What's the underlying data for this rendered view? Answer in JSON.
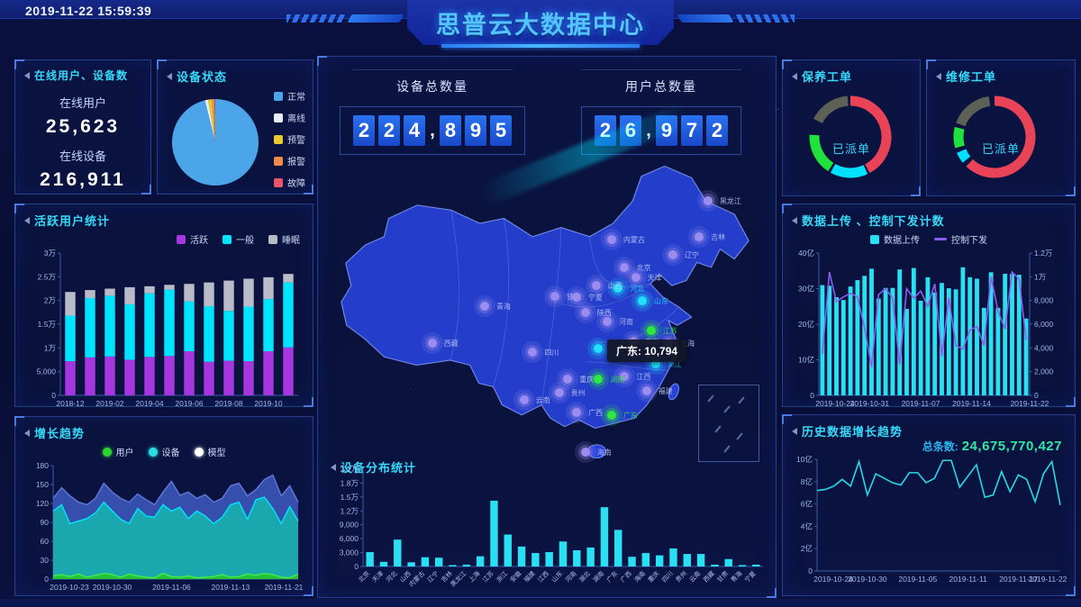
{
  "header": {
    "timestamp": "2019-11-22 15:59:39",
    "title": "思普云大数据中心"
  },
  "panels": {
    "online": {
      "title": "在线用户、设备数",
      "user_label": "在线用户",
      "user_value": "25,623",
      "device_label": "在线设备",
      "device_value": "216,911"
    },
    "device_status": {
      "title": "设备状态"
    },
    "active_users": {
      "title": "活跃用户统计"
    },
    "growth": {
      "title": "增长趋势"
    },
    "distribution": {
      "title": "设备分布统计"
    },
    "maintenance": {
      "title": "保养工单"
    },
    "repair": {
      "title": "维修工单"
    },
    "upload": {
      "title": "数据上传 、控制下发计数"
    },
    "history": {
      "title": "历史数据增长趋势",
      "total_label": "总条数:",
      "total_value": "24,675,770,427"
    }
  },
  "totals": {
    "device_label": "设备总数量",
    "device_value": "224,895",
    "user_label": "用户总数量",
    "user_value": "26,972"
  },
  "map": {
    "tooltip": "广东: 10,794",
    "bubbles": [
      {
        "name": "黑龙江",
        "x": 87,
        "y": 13,
        "c": "p"
      },
      {
        "name": "吉林",
        "x": 85,
        "y": 25,
        "c": "p"
      },
      {
        "name": "辽宁",
        "x": 79,
        "y": 31,
        "c": "p"
      },
      {
        "name": "内蒙古",
        "x": 65,
        "y": 26,
        "c": "p"
      },
      {
        "name": "北京",
        "x": 68,
        "y": 35,
        "c": "p"
      },
      {
        "name": "天津",
        "x": 70.5,
        "y": 38.5,
        "c": "p"
      },
      {
        "name": "河北",
        "x": 66.5,
        "y": 42,
        "c": "c"
      },
      {
        "name": "山西",
        "x": 61.5,
        "y": 41,
        "c": "p"
      },
      {
        "name": "山东",
        "x": 72,
        "y": 46,
        "c": "c"
      },
      {
        "name": "河南",
        "x": 64,
        "y": 53,
        "c": "p"
      },
      {
        "name": "江苏",
        "x": 74,
        "y": 56,
        "c": "g"
      },
      {
        "name": "安徽",
        "x": 70,
        "y": 59.5,
        "c": "p"
      },
      {
        "name": "上海",
        "x": 78,
        "y": 60,
        "c": "p"
      },
      {
        "name": "湖北",
        "x": 62,
        "y": 62,
        "c": "c"
      },
      {
        "name": "浙江",
        "x": 75,
        "y": 67,
        "c": "c"
      },
      {
        "name": "江西",
        "x": 68,
        "y": 71,
        "c": "p"
      },
      {
        "name": "湖南",
        "x": 62,
        "y": 72,
        "c": "g"
      },
      {
        "name": "重庆",
        "x": 55,
        "y": 72,
        "c": "p"
      },
      {
        "name": "四川",
        "x": 47,
        "y": 63,
        "c": "p"
      },
      {
        "name": "贵州",
        "x": 53,
        "y": 76.5,
        "c": "p"
      },
      {
        "name": "福建",
        "x": 73,
        "y": 76,
        "c": "p"
      },
      {
        "name": "广西",
        "x": 57,
        "y": 83,
        "c": "p"
      },
      {
        "name": "广东",
        "x": 65,
        "y": 84,
        "c": "g"
      },
      {
        "name": "云南",
        "x": 45,
        "y": 79,
        "c": "p"
      },
      {
        "name": "西藏",
        "x": 24,
        "y": 60,
        "c": "p"
      },
      {
        "name": "青海",
        "x": 36,
        "y": 48,
        "c": "p"
      },
      {
        "name": "甘肃",
        "x": 52,
        "y": 44.5,
        "c": "p"
      },
      {
        "name": "宁夏",
        "x": 57,
        "y": 45,
        "c": "p"
      },
      {
        "name": "陕西",
        "x": 59,
        "y": 50,
        "c": "p"
      },
      {
        "name": "海南",
        "x": 59,
        "y": 96,
        "c": "p"
      }
    ]
  },
  "colors": {
    "bubble_p": "#9c8cf0",
    "bubble_c": "#1fe0ff",
    "bubble_g": "#2ee83e",
    "axis": "#3c5ba8",
    "tick_text": "#9db6e8"
  },
  "chart_data": [
    {
      "id": "device_status",
      "type": "pie",
      "title": "设备状态",
      "legend_position": "right",
      "slices": [
        {
          "label": "正常",
          "value": 96.2,
          "color": "#4ba5e8"
        },
        {
          "label": "离线",
          "value": 1.2,
          "color": "#e8eefb"
        },
        {
          "label": "预警",
          "value": 1.4,
          "color": "#e8c92e"
        },
        {
          "label": "报警",
          "value": 1.0,
          "color": "#ef8a4a"
        },
        {
          "label": "故障",
          "value": 0.2,
          "color": "#e85568"
        }
      ]
    },
    {
      "id": "active_users",
      "type": "stacked_bar",
      "title": "活跃用户统计",
      "ylim": [
        0,
        30000
      ],
      "xtick_every": 2,
      "categories": [
        "2018-12",
        "2019-01",
        "2019-02",
        "2019-03",
        "2019-04",
        "2019-05",
        "2019-06",
        "2019-07",
        "2019-08",
        "2019-09",
        "2019-10",
        "2019-11"
      ],
      "series": [
        {
          "name": "活跃",
          "color": "#a636e0",
          "values": [
            7200,
            8000,
            8200,
            7500,
            8100,
            8300,
            9300,
            7100,
            7300,
            7200,
            9300,
            10100
          ]
        },
        {
          "name": "一般",
          "color": "#00e4ff",
          "values": [
            9600,
            12500,
            12800,
            11700,
            13400,
            14000,
            10500,
            11700,
            10500,
            11500,
            11000,
            13700
          ]
        },
        {
          "name": "睡眠",
          "color": "#b9bcc8",
          "values": [
            5000,
            1700,
            1500,
            3600,
            1500,
            1000,
            3700,
            5000,
            6400,
            5900,
            4600,
            1800
          ]
        }
      ],
      "yticks": [
        {
          "v": 0,
          "l": "0"
        },
        {
          "v": 5000,
          "l": "5,000"
        },
        {
          "v": 10000,
          "l": "1万"
        },
        {
          "v": 15000,
          "l": "1.5万"
        },
        {
          "v": 20000,
          "l": "2万"
        },
        {
          "v": 25000,
          "l": "2.5万"
        },
        {
          "v": 30000,
          "l": "3万"
        }
      ]
    },
    {
      "id": "growth_trend",
      "type": "layered_area",
      "title": "增长趋势",
      "ylim": [
        0,
        180
      ],
      "yticks": [
        {
          "v": 0,
          "l": "0"
        },
        {
          "v": 30,
          "l": "30"
        },
        {
          "v": 60,
          "l": "60"
        },
        {
          "v": 90,
          "l": "90"
        },
        {
          "v": 120,
          "l": "120"
        },
        {
          "v": 150,
          "l": "150"
        },
        {
          "v": 180,
          "l": "180"
        }
      ],
      "xticks": [
        {
          "pos": 0,
          "l": "2019-10-23"
        },
        {
          "pos": 0.241,
          "l": "2019-10-30"
        },
        {
          "pos": 0.483,
          "l": "2019-11-06"
        },
        {
          "pos": 0.724,
          "l": "2019-11-13"
        },
        {
          "pos": 1,
          "l": "2019-11-21"
        }
      ],
      "legend": [
        {
          "label": "用户",
          "color": "#2fd432",
          "type": "dot"
        },
        {
          "label": "设备",
          "color": "#29e0e0",
          "type": "dot"
        },
        {
          "label": "模型",
          "color": "#ffffff",
          "type": "dot"
        }
      ],
      "series": [
        {
          "name": "模型",
          "color": "#3b55b8",
          "line": "#5e79d8",
          "values": [
            128,
            145,
            132,
            122,
            118,
            128,
            152,
            138,
            128,
            122,
            135,
            126,
            118,
            138,
            155,
            133,
            138,
            128,
            134,
            122,
            128,
            148,
            152,
            132,
            142,
            158,
            165,
            132,
            148,
            122
          ]
        },
        {
          "name": "设备",
          "color": "#17b2ae",
          "line": "#00e5ff",
          "values": [
            108,
            118,
            88,
            92,
            96,
            105,
            122,
            108,
            95,
            88,
            112,
            100,
            98,
            118,
            108,
            114,
            96,
            108,
            100,
            88,
            98,
            118,
            122,
            95,
            126,
            130,
            112,
            88,
            115,
            92
          ]
        },
        {
          "name": "用户",
          "color": "#22c72a",
          "line": "#49e84f",
          "values": [
            5,
            7,
            4,
            8,
            3,
            6,
            9,
            7,
            3,
            8,
            5,
            3,
            2,
            9,
            4,
            3,
            5,
            2,
            3,
            4,
            7,
            3,
            4,
            8,
            6,
            9,
            7,
            3,
            2,
            8
          ]
        }
      ]
    },
    {
      "id": "device_distribution",
      "type": "bar",
      "title": "设备分布统计",
      "ylim": [
        0,
        21000
      ],
      "bar_color": "#29dff2",
      "categories": [
        "北京",
        "天津",
        "河北",
        "山西",
        "内蒙古",
        "辽宁",
        "吉林",
        "黑龙江",
        "上海",
        "江苏",
        "浙江",
        "安徽",
        "福建",
        "江西",
        "山东",
        "河南",
        "湖北",
        "湖南",
        "广东",
        "广西",
        "海南",
        "重庆",
        "四川",
        "贵州",
        "云南",
        "西藏",
        "甘肃",
        "青海",
        "宁夏"
      ],
      "values": [
        3100,
        1000,
        5800,
        900,
        2000,
        1900,
        300,
        400,
        2200,
        14200,
        6900,
        4300,
        2900,
        3100,
        5400,
        3500,
        4100,
        12800,
        7900,
        2100,
        2900,
        2400,
        3900,
        2700,
        2700,
        400,
        1600,
        300,
        400
      ],
      "yticks": [
        {
          "v": 0,
          "l": "0"
        },
        {
          "v": 3000,
          "l": "3,000"
        },
        {
          "v": 6000,
          "l": "6,000"
        },
        {
          "v": 9000,
          "l": "9,000"
        },
        {
          "v": 12000,
          "l": "1.2万"
        },
        {
          "v": 15000,
          "l": "1.5万"
        },
        {
          "v": 18000,
          "l": "1.8万"
        },
        {
          "v": 21000,
          "l": "2.1万"
        }
      ]
    },
    {
      "id": "maintenance_orders",
      "type": "donut",
      "title": "保养工单",
      "center_label": "已派单",
      "segments": [
        {
          "a0": 0,
          "a1": 152,
          "color": "#e84357"
        },
        {
          "a0": 155,
          "a1": 209,
          "color": "#00e0ff"
        },
        {
          "a0": 213,
          "a1": 273,
          "color": "#1fe23c"
        },
        {
          "a0": 296,
          "a1": 356,
          "color": "#5c6055"
        }
      ]
    },
    {
      "id": "repair_orders",
      "type": "donut",
      "title": "维修工单",
      "center_label": "已派单",
      "segments": [
        {
          "a0": 0,
          "a1": 224,
          "color": "#e84357"
        },
        {
          "a0": 231,
          "a1": 247,
          "color": "#00e0ff"
        },
        {
          "a0": 254,
          "a1": 284,
          "color": "#1fe23c"
        },
        {
          "a0": 290,
          "a1": 352,
          "color": "#5c6055"
        }
      ]
    },
    {
      "id": "upload_control",
      "type": "bar_line",
      "title": "数据上传 、控制下发计数",
      "legend": [
        {
          "label": "数据上传",
          "color": "#29dff2",
          "type": "bar"
        },
        {
          "label": "控制下发",
          "color": "#8a5cf0",
          "type": "line"
        }
      ],
      "ylim_left": [
        0,
        40
      ],
      "ylim_right": [
        0,
        12000
      ],
      "bars": {
        "name": "数据上传",
        "color": "#29dff2",
        "values": [
          31,
          30.8,
          27.6,
          26.8,
          30.6,
          32.4,
          33.6,
          35.6,
          27.2,
          30.2,
          30.2,
          35.4,
          24.3,
          35.8,
          26.6,
          33.2,
          28.9,
          31.6,
          30.1,
          29.8,
          36,
          33.2,
          32.8,
          24.6,
          34.6,
          24.6,
          34.2,
          34.1,
          33.9,
          21.6
        ]
      },
      "line": {
        "name": "控制下发",
        "color": "#8a5cf0",
        "values": [
          3500,
          10400,
          7900,
          8300,
          8600,
          8300,
          5700,
          2400,
          8500,
          9000,
          8200,
          2600,
          9000,
          8200,
          8800,
          7500,
          9400,
          3300,
          8200,
          4200,
          3900,
          5500,
          5800,
          4200,
          10000,
          7100,
          5600,
          10400,
          9800,
          4700
        ]
      },
      "yticks_left": [
        {
          "v": 0,
          "l": "0"
        },
        {
          "v": 10,
          "l": "10亿"
        },
        {
          "v": 20,
          "l": "20亿"
        },
        {
          "v": 30,
          "l": "30亿"
        },
        {
          "v": 40,
          "l": "40亿"
        }
      ],
      "yticks_right": [
        {
          "v": 0,
          "l": "0"
        },
        {
          "v": 2000,
          "l": "2,000"
        },
        {
          "v": 4000,
          "l": "4,000"
        },
        {
          "v": 6000,
          "l": "6,000"
        },
        {
          "v": 8000,
          "l": "8,000"
        },
        {
          "v": 10000,
          "l": "1万"
        },
        {
          "v": 12000,
          "l": "1.2万"
        }
      ],
      "xticks": [
        {
          "pos": 0,
          "l": "2019-10-24"
        },
        {
          "pos": 0.241,
          "l": "2019-10-31"
        },
        {
          "pos": 0.483,
          "l": "2019-11-07"
        },
        {
          "pos": 0.724,
          "l": "2019-11-14"
        },
        {
          "pos": 1,
          "l": "2019-11-22"
        }
      ]
    },
    {
      "id": "history_growth",
      "type": "line",
      "title": "历史数据增长趋势",
      "color": "#27d8e8",
      "ylim": [
        0,
        10
      ],
      "total_label": "总条数:",
      "total_value": "24,675,770,427",
      "values": [
        7.2,
        7.3,
        7.6,
        8.2,
        7.6,
        9.8,
        6.8,
        8.7,
        8.3,
        7.9,
        7.7,
        8.8,
        8.8,
        7.9,
        8.3,
        9.9,
        9.9,
        7.5,
        8.5,
        9.5,
        6.6,
        6.8,
        8.9,
        7.1,
        8.6,
        8.2,
        6.2,
        8.7,
        9.8,
        5.9
      ],
      "yticks": [
        {
          "v": 0,
          "l": "0"
        },
        {
          "v": 2,
          "l": "2亿"
        },
        {
          "v": 4,
          "l": "4亿"
        },
        {
          "v": 6,
          "l": "6亿"
        },
        {
          "v": 8,
          "l": "8亿"
        },
        {
          "v": 10,
          "l": "10亿"
        }
      ],
      "xticks": [
        {
          "pos": 0,
          "l": "2019-10-24"
        },
        {
          "pos": 0.207,
          "l": "2019-10-30"
        },
        {
          "pos": 0.414,
          "l": "2019-11-05"
        },
        {
          "pos": 0.621,
          "l": "2019-11-11"
        },
        {
          "pos": 0.828,
          "l": "2019-11-17"
        },
        {
          "pos": 1,
          "l": "2019-11-22"
        }
      ]
    }
  ]
}
